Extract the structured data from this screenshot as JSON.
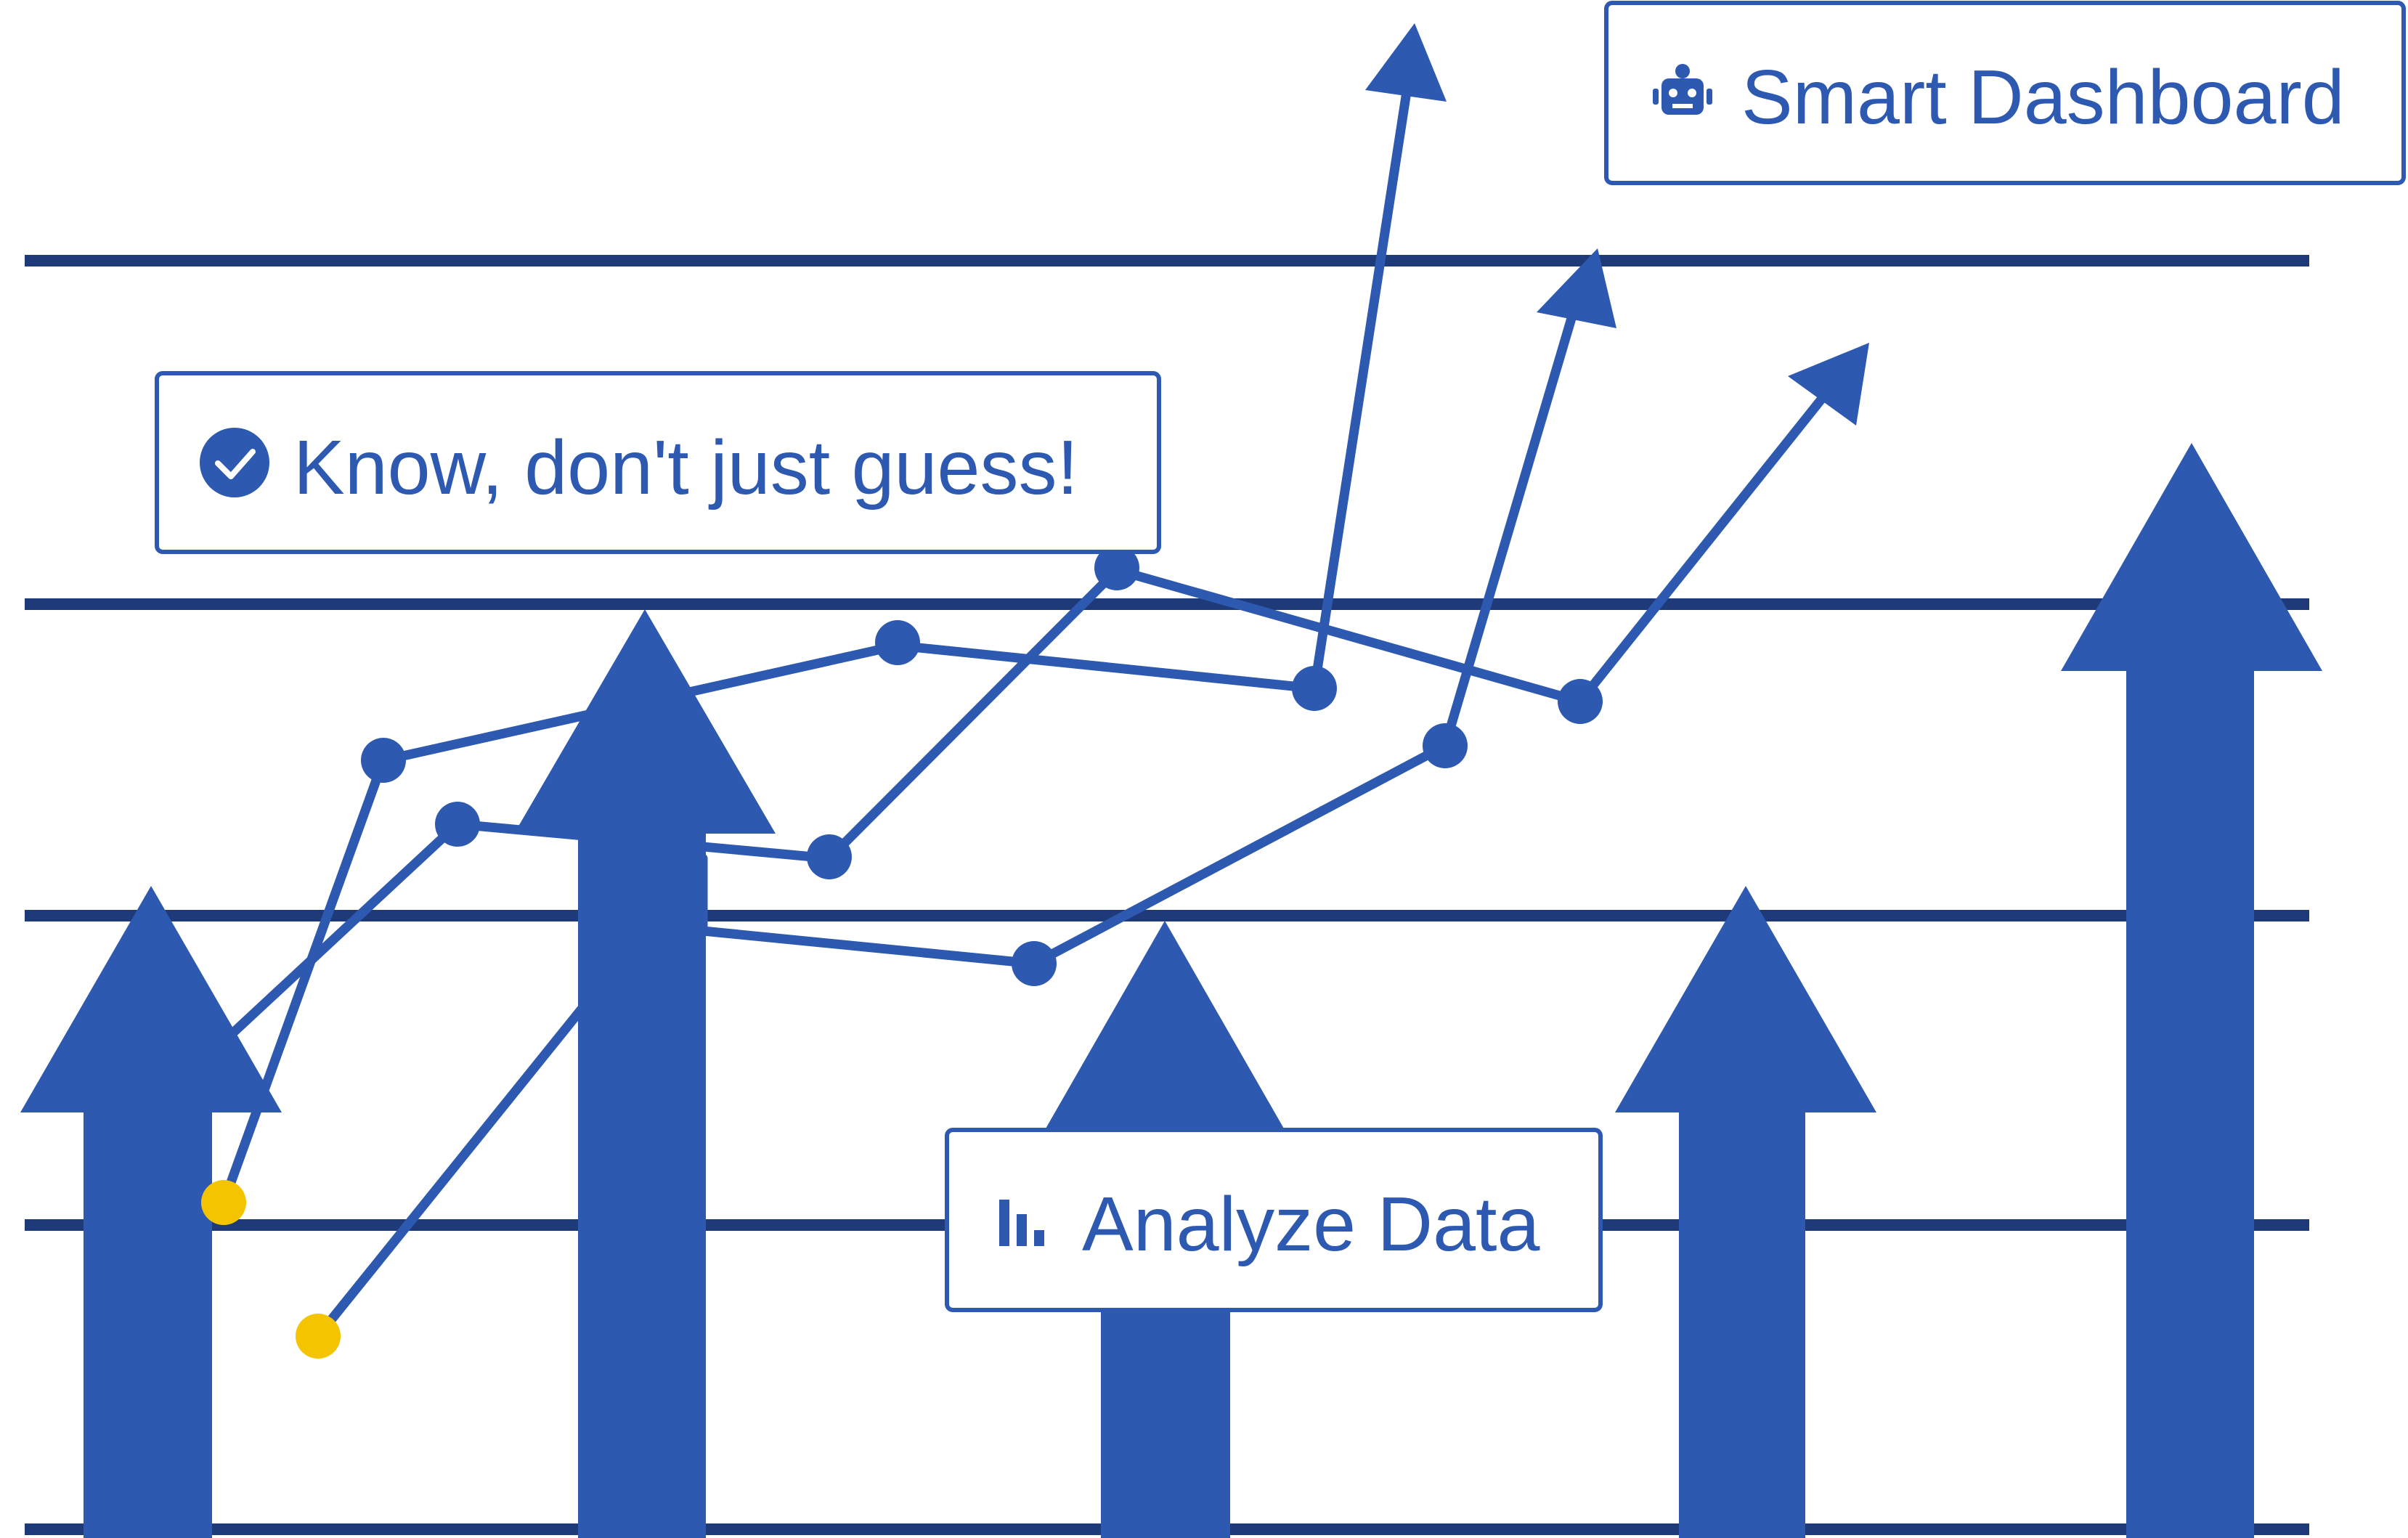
{
  "colors": {
    "primary": "#2d59b0",
    "gridline": "#1f3a78",
    "start_point": "#f5c400",
    "background": "#ffffff"
  },
  "callouts": {
    "top_right": {
      "label": "Smart Dashboard",
      "icon": "robot-icon"
    },
    "left": {
      "label": "Know, don't just guess!",
      "icon": "check-circle-icon"
    },
    "bottom": {
      "label": "Analyze Data",
      "icon": "bar-chart-icon"
    }
  },
  "gridlines": {
    "count": 5
  },
  "up_arrows": {
    "count": 5
  },
  "trend_lines": {
    "count": 3,
    "arrowhead": "arrow-up-right"
  }
}
